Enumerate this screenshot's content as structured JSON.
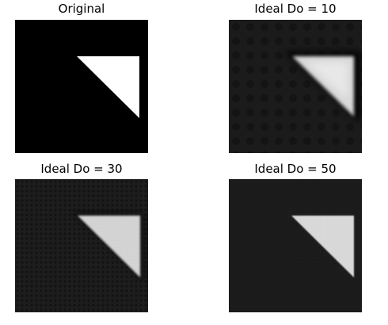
{
  "figure": {
    "panels": [
      {
        "title": "Original",
        "colors": {
          "background": "#000000",
          "triangle": "#ffffff"
        }
      },
      {
        "title": "Ideal Do = 10",
        "colors": {
          "background": "#1a1a1a",
          "triangle": "#d8d8d8",
          "halo": "#000000"
        }
      },
      {
        "title": "Ideal Do = 30",
        "colors": {
          "background": "#1c1c1c",
          "triangle": "#d6d6d6"
        }
      },
      {
        "title": "Ideal Do = 50",
        "colors": {
          "background": "#1b1b1b",
          "triangle": "#dadada"
        }
      }
    ]
  }
}
